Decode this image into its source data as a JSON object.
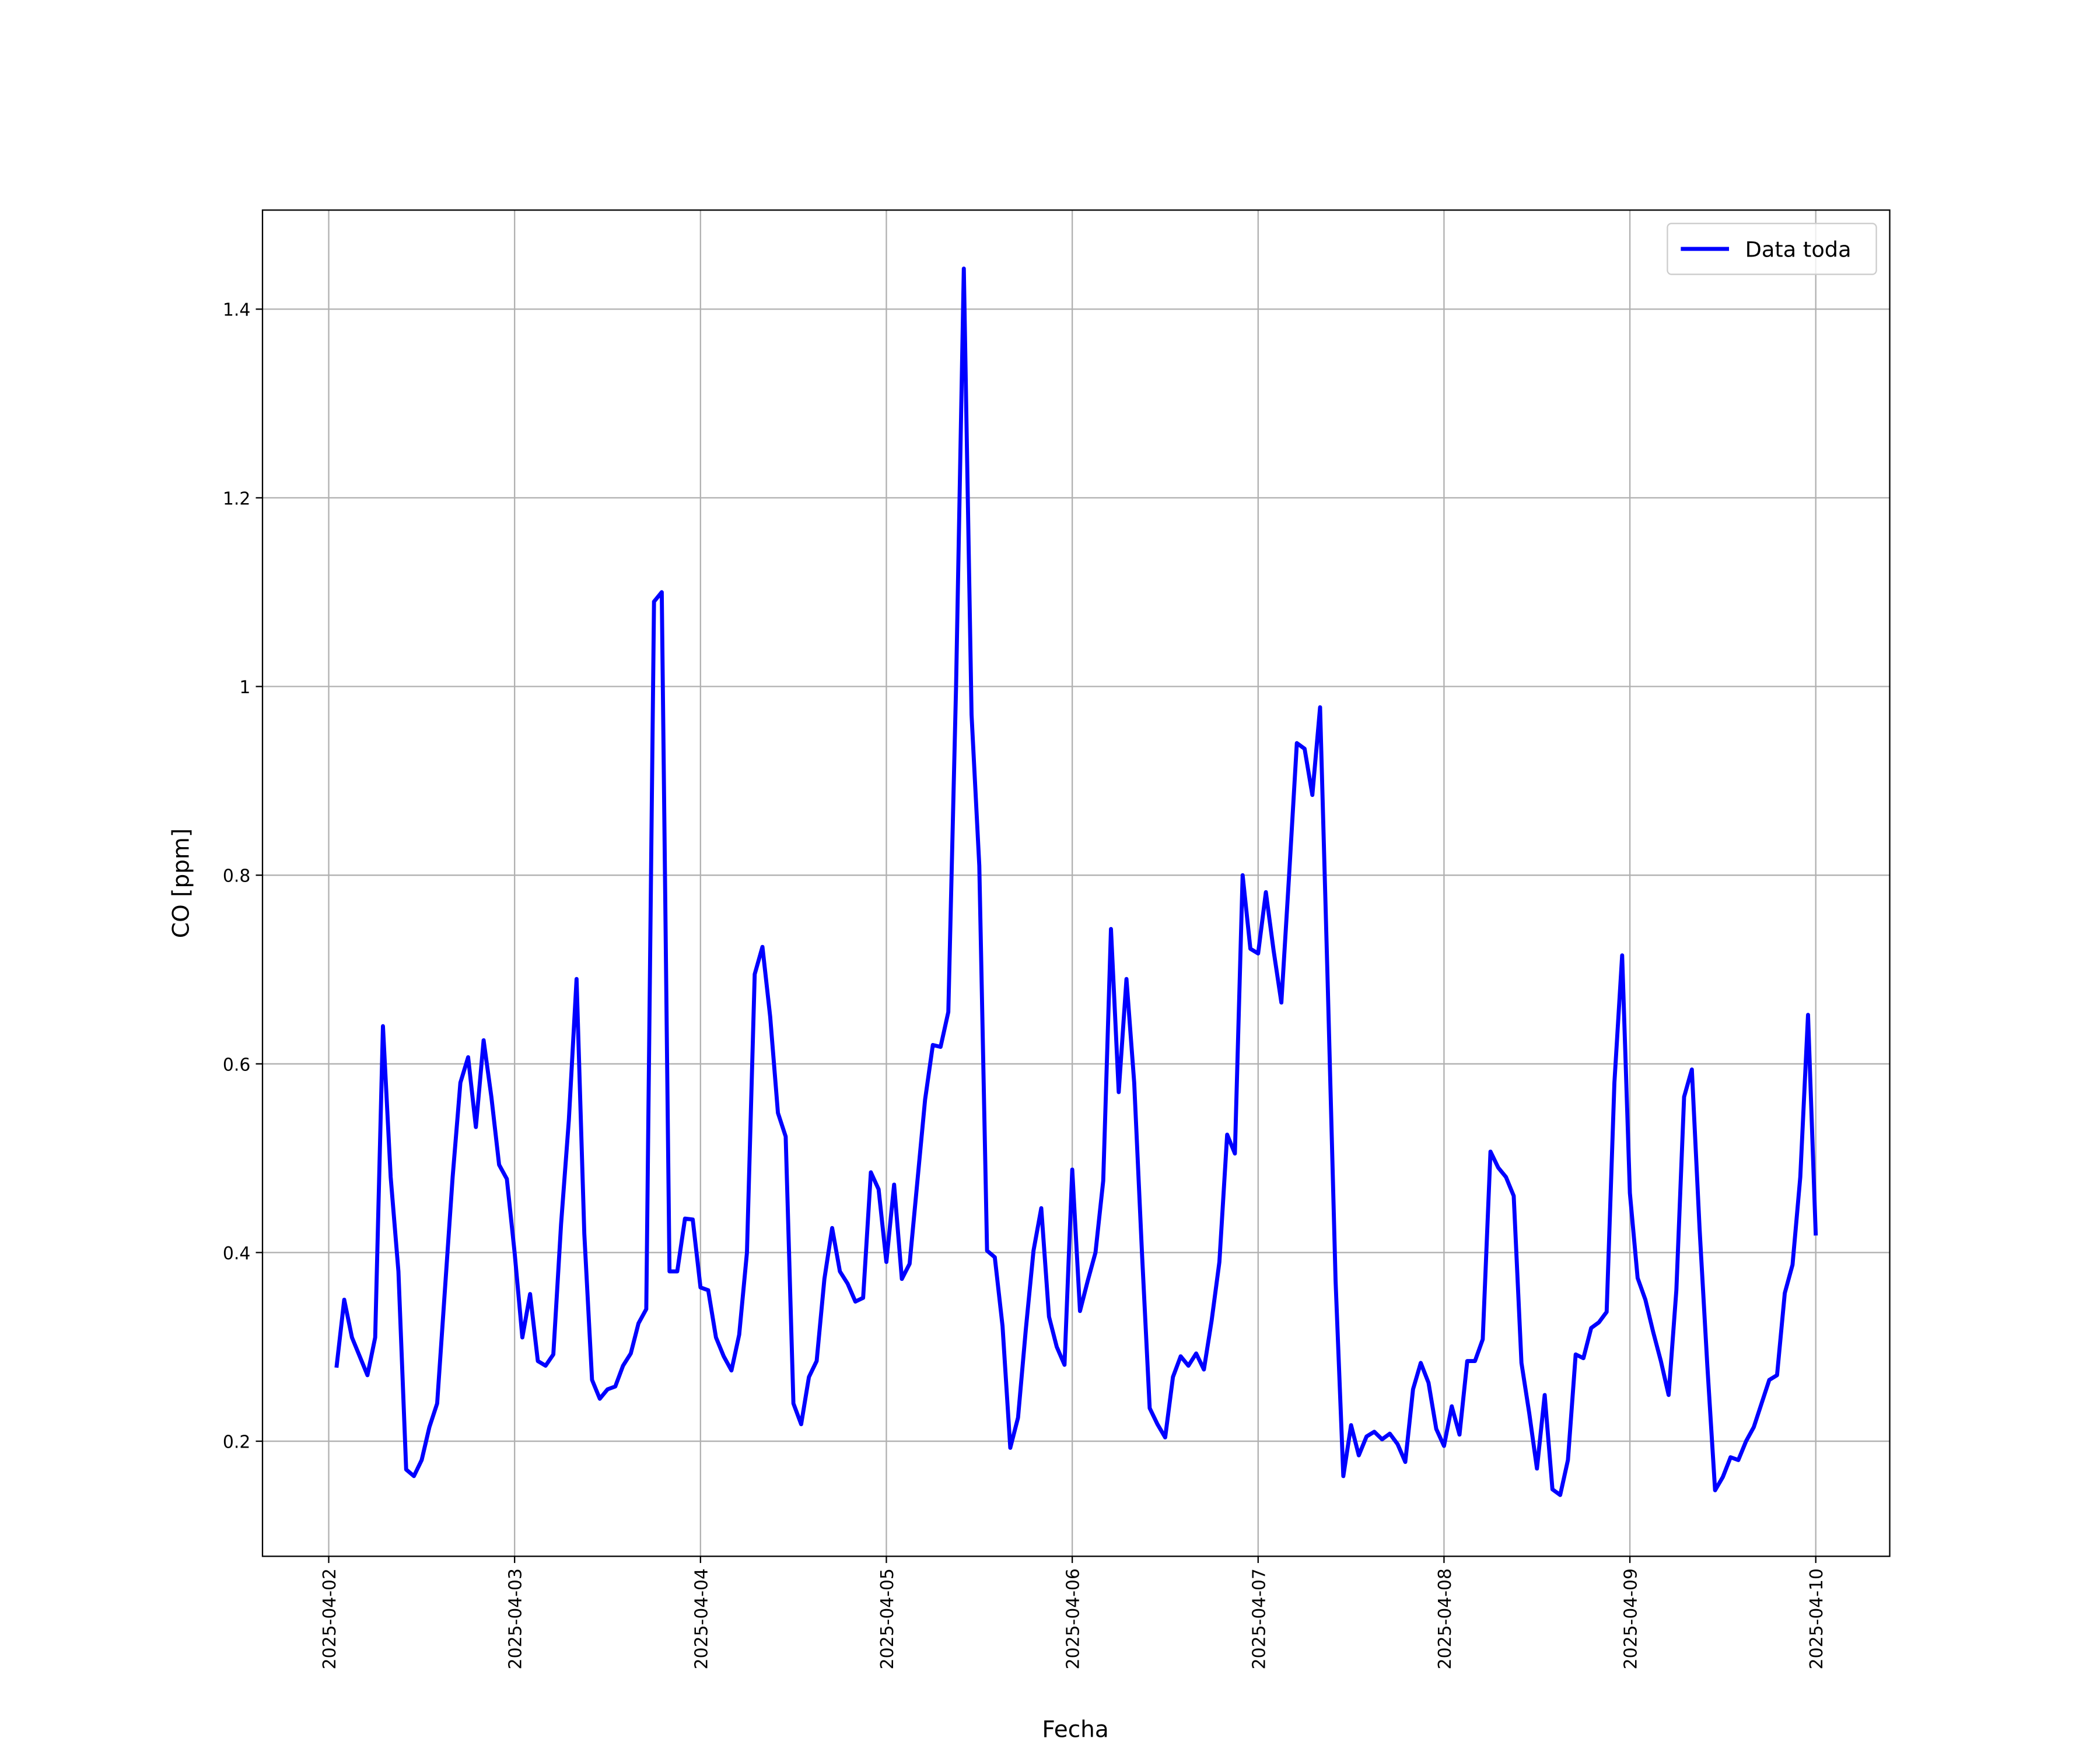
{
  "chart_data": {
    "type": "line",
    "xlabel": "Fecha",
    "ylabel": "CO [ppm]",
    "categories": [
      "2025-04-02",
      null,
      null,
      null,
      null,
      null,
      null,
      null,
      null,
      null,
      null,
      null,
      null,
      null,
      null,
      null,
      null,
      null,
      null,
      null,
      null,
      null,
      null,
      null,
      "2025-04-03",
      null,
      null,
      null,
      null,
      null,
      null,
      null,
      null,
      null,
      null,
      null,
      null,
      null,
      null,
      null,
      null,
      null,
      null,
      null,
      null,
      null,
      null,
      null,
      "2025-04-04",
      null,
      null,
      null,
      null,
      null,
      null,
      null,
      null,
      null,
      null,
      null,
      null,
      null,
      null,
      null,
      null,
      null,
      null,
      null,
      null,
      null,
      null,
      null,
      "2025-04-05",
      null,
      null,
      null,
      null,
      null,
      null,
      null,
      null,
      null,
      null,
      null,
      null,
      null,
      null,
      null,
      null,
      null,
      null,
      null,
      null,
      null,
      null,
      null,
      "2025-04-06",
      null,
      null,
      null,
      null,
      null,
      null,
      null,
      null,
      null,
      null,
      null,
      null,
      null,
      null,
      null,
      null,
      null,
      null,
      null,
      null,
      null,
      null,
      null,
      "2025-04-07",
      null,
      null,
      null,
      null,
      null,
      null,
      null,
      null,
      null,
      null,
      null,
      null,
      null,
      null,
      null,
      null,
      null,
      null,
      null,
      null,
      null,
      null,
      null,
      "2025-04-08",
      null,
      null,
      null,
      null,
      null,
      null,
      null,
      null,
      null,
      null,
      null,
      null,
      null,
      null,
      null,
      null,
      null,
      null,
      null,
      null,
      null,
      null,
      null,
      "2025-04-09",
      null,
      null,
      null,
      null,
      null,
      null,
      null,
      null,
      null,
      null,
      null,
      null,
      null,
      null,
      null,
      null,
      null,
      null,
      null,
      null,
      null,
      null,
      null,
      "2025-04-10"
    ],
    "series": [
      {
        "name": "Data toda",
        "color": "#0000ff",
        "values": [
          null,
          0.278,
          0.35,
          0.31,
          0.29,
          0.27,
          0.31,
          0.64,
          0.48,
          0.38,
          0.17,
          0.163,
          0.18,
          0.215,
          0.24,
          0.36,
          0.48,
          0.58,
          0.607,
          0.533,
          0.625,
          0.565,
          0.493,
          0.478,
          0.4,
          0.31,
          0.356,
          0.285,
          0.28,
          0.292,
          0.43,
          0.54,
          0.69,
          0.42,
          0.265,
          0.245,
          0.255,
          0.258,
          0.28,
          0.293,
          0.325,
          0.34,
          1.09,
          1.1,
          0.38,
          0.38,
          0.436,
          0.435,
          0.363,
          0.36,
          0.31,
          0.29,
          0.275,
          0.313,
          0.4,
          0.695,
          0.724,
          0.65,
          0.548,
          0.523,
          0.24,
          0.218,
          0.268,
          0.285,
          0.372,
          0.426,
          0.38,
          0.367,
          0.348,
          0.352,
          0.485,
          0.467,
          0.39,
          0.472,
          0.372,
          0.388,
          0.475,
          0.562,
          0.62,
          0.618,
          0.655,
          1.0,
          1.443,
          0.97,
          0.81,
          0.402,
          0.395,
          0.322,
          0.193,
          0.225,
          0.318,
          0.402,
          0.447,
          0.332,
          0.3,
          0.281,
          0.488,
          0.338,
          0.37,
          0.4,
          0.476,
          0.743,
          0.57,
          0.69,
          0.58,
          0.4,
          0.235,
          0.218,
          0.204,
          0.268,
          0.29,
          0.28,
          0.293,
          0.276,
          0.328,
          0.39,
          0.525,
          0.505,
          0.8,
          0.722,
          0.717,
          0.782,
          0.72,
          0.665,
          0.8,
          0.94,
          0.934,
          0.885,
          0.978,
          0.68,
          0.37,
          0.163,
          0.217,
          0.185,
          0.205,
          0.21,
          0.202,
          0.208,
          0.197,
          0.178,
          0.255,
          0.283,
          0.262,
          0.213,
          0.195,
          0.237,
          0.207,
          0.285,
          0.285,
          0.308,
          0.507,
          0.49,
          0.48,
          0.46,
          0.283,
          0.23,
          0.171,
          0.249,
          0.149,
          0.143,
          0.18,
          0.292,
          0.288,
          0.32,
          0.326,
          0.337,
          0.58,
          0.715,
          0.463,
          0.373,
          0.35,
          0.316,
          0.285,
          0.249,
          0.36,
          0.565,
          0.594,
          0.425,
          0.28,
          0.148,
          0.162,
          0.183,
          0.18,
          0.2,
          0.215,
          0.24,
          0.265,
          0.27,
          0.357,
          0.387,
          0.48,
          0.652,
          0.418
        ]
      }
    ],
    "ylim": [
      0.078,
      1.505
    ],
    "yticks": [
      0.2,
      0.4,
      0.6,
      0.8,
      1.0,
      1.2,
      1.4
    ],
    "grid": true,
    "legend": "upper right"
  }
}
